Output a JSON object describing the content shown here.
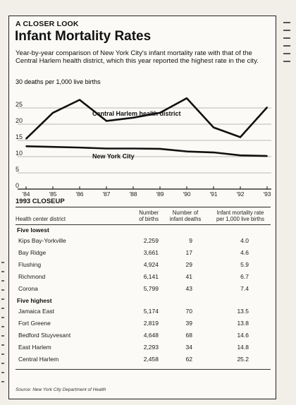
{
  "header": {
    "kicker": "A CLOSER LOOK",
    "title": "Infant Mortality Rates",
    "subtitle": "Year-by-year comparison of New York City's infant mortality rate with that of the Central Harlem health district, which this year reported the highest rate in the city."
  },
  "chart_data": {
    "type": "line",
    "title": "Infant Mortality Rates",
    "ylabel": "30 deaths per 1,000 live births",
    "x": [
      "'84",
      "'85",
      "'86",
      "'87",
      "'88",
      "'89",
      "'90",
      "'91",
      "'92",
      "'93"
    ],
    "yticks": [
      0,
      5,
      10,
      15,
      20,
      25
    ],
    "ylim": [
      0,
      30
    ],
    "series": [
      {
        "name": "Central Harlem health district",
        "values": [
          15.5,
          23.5,
          27.5,
          21,
          22,
          23.5,
          28,
          19,
          16,
          25.2
        ],
        "color": "#111111"
      },
      {
        "name": "New York City",
        "values": [
          13.2,
          13,
          12.8,
          12.5,
          12.5,
          12.4,
          11.6,
          11.3,
          10.4,
          10.2
        ],
        "color": "#111111"
      }
    ],
    "grid": true
  },
  "closeup": {
    "heading": "1993 CLOSEUP",
    "columns": {
      "district": "Health center district",
      "births": [
        "Number",
        "of births"
      ],
      "deaths": [
        "Number of",
        "infant deaths"
      ],
      "rate": [
        "Infant mortality rate",
        "per 1,000 live births"
      ]
    },
    "groups": [
      {
        "label": "Five lowest",
        "rows": [
          {
            "district": "Kips Bay-Yorkville",
            "births": "2,259",
            "deaths": "9",
            "rate": "4.0"
          },
          {
            "district": "Bay Ridge",
            "births": "3,661",
            "deaths": "17",
            "rate": "4.6"
          },
          {
            "district": "Flushing",
            "births": "4,924",
            "deaths": "29",
            "rate": "5.9"
          },
          {
            "district": "Richmond",
            "births": "6,141",
            "deaths": "41",
            "rate": "6.7"
          },
          {
            "district": "Corona",
            "births": "5,799",
            "deaths": "43",
            "rate": "7.4"
          }
        ]
      },
      {
        "label": "Five highest",
        "rows": [
          {
            "district": "Jamaica East",
            "births": "5,174",
            "deaths": "70",
            "rate": "13.5"
          },
          {
            "district": "Fort Greene",
            "births": "2,819",
            "deaths": "39",
            "rate": "13.8"
          },
          {
            "district": "Bedford Stuyvesant",
            "births": "4,648",
            "deaths": "68",
            "rate": "14.6"
          },
          {
            "district": "East Harlem",
            "births": "2,293",
            "deaths": "34",
            "rate": "14.8"
          },
          {
            "district": "Central Harlem",
            "births": "2,458",
            "deaths": "62",
            "rate": "25.2"
          }
        ]
      }
    ],
    "source": "Source: New York City Department of Health"
  }
}
